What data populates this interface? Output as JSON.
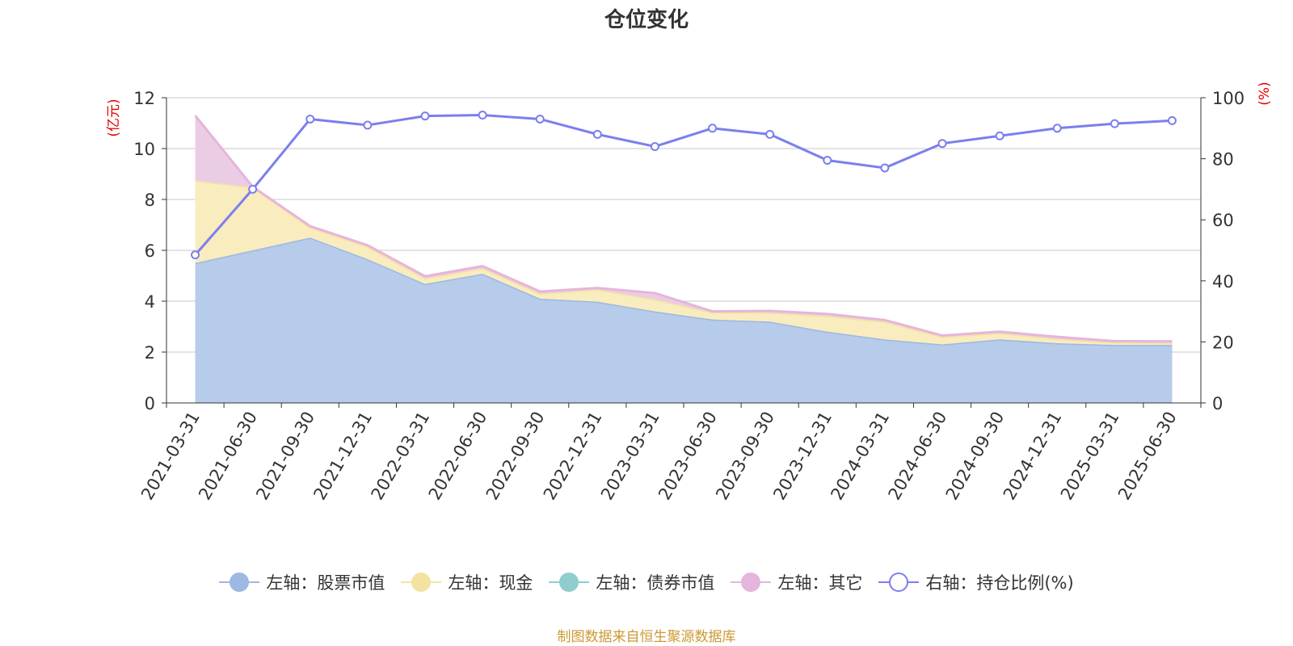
{
  "title": "仓位变化",
  "source_note": "制图数据来自恒生聚源数据库",
  "chart_data": {
    "type": "area",
    "categories": [
      "2021-03-31",
      "2021-06-30",
      "2021-09-30",
      "2021-12-31",
      "2022-03-31",
      "2022-06-30",
      "2022-09-30",
      "2022-12-31",
      "2023-03-31",
      "2023-06-30",
      "2023-09-30",
      "2023-12-31",
      "2024-03-31",
      "2024-06-30",
      "2024-09-30",
      "2024-12-31",
      "2025-03-31",
      "2025-06-30"
    ],
    "y_left": {
      "label": "(亿元)",
      "ylim": [
        0,
        12
      ],
      "ticks": [
        0,
        2,
        4,
        6,
        8,
        10,
        12
      ]
    },
    "y_right": {
      "label": "(%)",
      "ylim": [
        0,
        100
      ],
      "ticks": [
        0,
        20,
        40,
        60,
        80,
        100
      ]
    },
    "grid": true,
    "legend_position": "bottom",
    "series": [
      {
        "name": "左轴：股票市值",
        "axis": "left",
        "type": "area",
        "stack": true,
        "color": "#9db8e2",
        "fill": "#b7cbea",
        "values": [
          5.5,
          6.0,
          6.5,
          5.65,
          4.68,
          5.08,
          4.1,
          3.98,
          3.6,
          3.28,
          3.2,
          2.8,
          2.5,
          2.3,
          2.5,
          2.35,
          2.28,
          2.28
        ]
      },
      {
        "name": "左轴：现金",
        "axis": "left",
        "type": "area",
        "stack": true,
        "color": "#f4e3a0",
        "fill": "#f9ecbe",
        "values": [
          3.25,
          2.48,
          0.4,
          0.5,
          0.22,
          0.22,
          0.2,
          0.48,
          0.47,
          0.28,
          0.35,
          0.62,
          0.7,
          0.3,
          0.25,
          0.17,
          0.1,
          0.08
        ]
      },
      {
        "name": "左轴：债券市值",
        "axis": "left",
        "type": "area",
        "stack": true,
        "color": "#8fcdcf",
        "fill": "#b5e0e0",
        "values": [
          0,
          0,
          0,
          0,
          0,
          0,
          0,
          0,
          0,
          0,
          0,
          0,
          0,
          0,
          0,
          0,
          0,
          0
        ]
      },
      {
        "name": "左轴：其它",
        "axis": "left",
        "type": "area",
        "stack": true,
        "color": "#e6b5db",
        "fill": "#ebcce5",
        "values": [
          2.55,
          0.02,
          0.05,
          0.05,
          0.08,
          0.08,
          0.08,
          0.06,
          0.25,
          0.04,
          0.07,
          0.08,
          0.06,
          0.05,
          0.05,
          0.08,
          0.05,
          0.06
        ]
      },
      {
        "name": "右轴：持仓比例(%)",
        "axis": "right",
        "type": "line",
        "color": "#7b7fee",
        "values": [
          48.5,
          70,
          93,
          91,
          94,
          94.3,
          93,
          88,
          84,
          90,
          88,
          79.5,
          77,
          85,
          87.5,
          90,
          91.5,
          92.5
        ]
      }
    ]
  }
}
